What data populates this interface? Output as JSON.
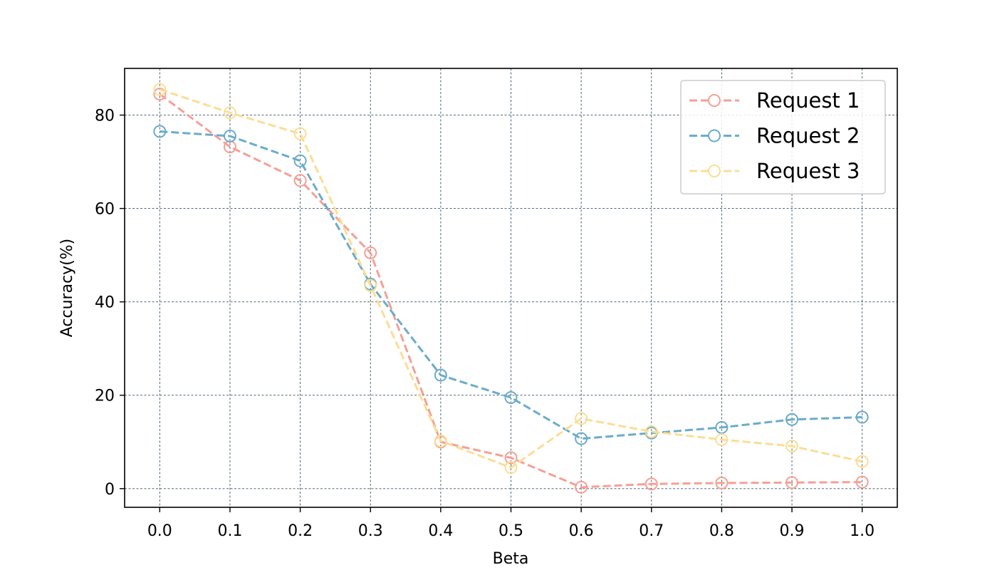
{
  "chart_data": {
    "type": "line",
    "title": "",
    "xlabel": "Beta",
    "ylabel": "Accuracy(%)",
    "x": [
      0.0,
      0.1,
      0.2,
      0.3,
      0.4,
      0.5,
      0.6,
      0.7,
      0.8,
      0.9,
      1.0
    ],
    "x_tick_labels": [
      "0.0",
      "0.1",
      "0.2",
      "0.3",
      "0.4",
      "0.5",
      "0.6",
      "0.7",
      "0.8",
      "0.9",
      "1.0"
    ],
    "y_ticks": [
      0,
      20,
      40,
      60,
      80
    ],
    "y_tick_labels": [
      "0",
      "20",
      "40",
      "60",
      "80"
    ],
    "xlim": [
      -0.05,
      1.05
    ],
    "ylim": [
      -4,
      90
    ],
    "grid": true,
    "grid_color": "#3b5568",
    "legend_position": "top-right",
    "series": [
      {
        "name": "Request 1",
        "color": "#f4a096",
        "linestyle": "dashed",
        "marker": "circle-open",
        "values": [
          84.5,
          73.2,
          66.0,
          50.5,
          10.0,
          6.6,
          0.3,
          1.0,
          1.2,
          1.3,
          1.4
        ]
      },
      {
        "name": "Request 2",
        "color": "#6aaccb",
        "linestyle": "dashed",
        "marker": "circle-open",
        "values": [
          76.5,
          75.5,
          70.2,
          43.8,
          24.3,
          19.5,
          10.7,
          11.9,
          13.1,
          14.8,
          15.3
        ]
      },
      {
        "name": "Request 3",
        "color": "#fbdd95",
        "linestyle": "dashed",
        "marker": "circle-open",
        "values": [
          85.5,
          80.5,
          76.0,
          43.5,
          10.2,
          4.5,
          15.0,
          12.2,
          10.5,
          9.1,
          5.8
        ]
      }
    ]
  }
}
